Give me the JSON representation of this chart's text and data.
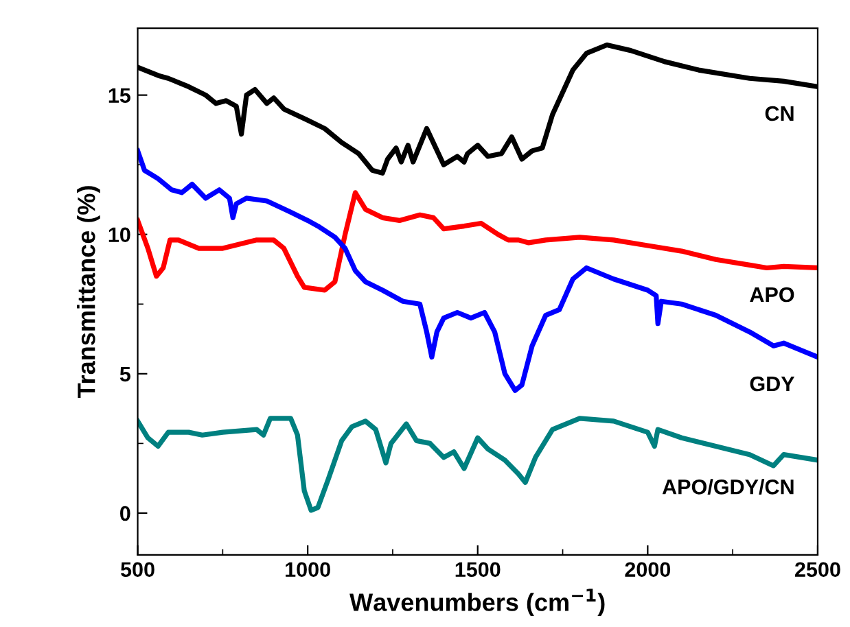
{
  "chart_data": {
    "type": "line",
    "xlabel": "Wavenumbers (cm$^{−1}$)",
    "ylabel": "Transmittance (%)",
    "xlim": [
      500,
      2500
    ],
    "xticks": [
      500,
      1000,
      1500,
      2000,
      2500
    ],
    "ylim": [
      -1.5,
      17.4
    ],
    "yticks": [
      0,
      5,
      10,
      15
    ],
    "grid": false,
    "legend": false,
    "marker": "none",
    "line_style": "solid",
    "series": [
      {
        "name": "CN",
        "color": "#000000",
        "x": [
          500,
          561,
          590,
          650,
          700,
          730,
          760,
          790,
          805,
          820,
          845,
          880,
          900,
          930,
          1000,
          1050,
          1100,
          1150,
          1190,
          1220,
          1235,
          1260,
          1275,
          1295,
          1310,
          1350,
          1400,
          1440,
          1460,
          1470,
          1500,
          1530,
          1570,
          1600,
          1630,
          1660,
          1690,
          1720,
          1780,
          1820,
          1880,
          1950,
          2050,
          2150,
          2300,
          2400,
          2500
        ],
        "values": [
          16.0,
          15.7,
          15.6,
          15.3,
          15.0,
          14.7,
          14.8,
          14.6,
          13.6,
          15.0,
          15.2,
          14.7,
          14.9,
          14.5,
          14.1,
          13.8,
          13.3,
          12.9,
          12.3,
          12.2,
          12.7,
          13.1,
          12.6,
          13.2,
          12.6,
          13.8,
          12.5,
          12.8,
          12.6,
          12.9,
          13.2,
          12.8,
          12.9,
          13.5,
          12.7,
          13.0,
          13.1,
          14.3,
          15.9,
          16.5,
          16.8,
          16.6,
          16.2,
          15.9,
          15.6,
          15.5,
          15.3
        ]
      },
      {
        "name": "APO",
        "color": "#ff0000",
        "x": [
          500,
          530,
          555,
          575,
          595,
          620,
          680,
          750,
          850,
          900,
          930,
          970,
          990,
          1050,
          1080,
          1110,
          1140,
          1170,
          1220,
          1270,
          1330,
          1370,
          1400,
          1460,
          1510,
          1560,
          1590,
          1620,
          1650,
          1700,
          1800,
          1900,
          2000,
          2100,
          2200,
          2300,
          2350,
          2400,
          2500
        ],
        "values": [
          10.5,
          9.5,
          8.5,
          8.8,
          9.8,
          9.8,
          9.5,
          9.5,
          9.8,
          9.8,
          9.5,
          8.5,
          8.1,
          8.0,
          8.3,
          10.0,
          11.5,
          10.9,
          10.6,
          10.5,
          10.7,
          10.6,
          10.2,
          10.3,
          10.4,
          10.0,
          9.8,
          9.8,
          9.7,
          9.8,
          9.9,
          9.8,
          9.6,
          9.4,
          9.1,
          8.9,
          8.8,
          8.85,
          8.8
        ]
      },
      {
        "name": "GDY",
        "color": "#0000ff",
        "x": [
          500,
          520,
          560,
          600,
          630,
          660,
          700,
          740,
          770,
          780,
          790,
          820,
          880,
          950,
          1000,
          1030,
          1080,
          1110,
          1140,
          1170,
          1220,
          1280,
          1330,
          1350,
          1365,
          1380,
          1400,
          1440,
          1480,
          1520,
          1550,
          1580,
          1610,
          1630,
          1660,
          1700,
          1740,
          1780,
          1820,
          1900,
          2000,
          2025,
          2030,
          2040,
          2100,
          2200,
          2300,
          2370,
          2400,
          2500
        ],
        "values": [
          13.0,
          12.3,
          12.0,
          11.6,
          11.5,
          11.8,
          11.3,
          11.6,
          11.3,
          10.6,
          11.1,
          11.3,
          11.2,
          10.8,
          10.5,
          10.3,
          9.9,
          9.5,
          8.7,
          8.3,
          8.0,
          7.6,
          7.5,
          6.5,
          5.6,
          6.5,
          7.0,
          7.2,
          7.0,
          7.2,
          6.5,
          5.0,
          4.4,
          4.6,
          6.0,
          7.1,
          7.3,
          8.4,
          8.8,
          8.4,
          8.0,
          7.8,
          6.8,
          7.6,
          7.5,
          7.1,
          6.5,
          6.0,
          6.1,
          5.6
        ]
      },
      {
        "name": "APO/GDY/CN",
        "color": "#008080",
        "x": [
          500,
          530,
          560,
          590,
          650,
          690,
          750,
          850,
          870,
          890,
          950,
          970,
          990,
          1010,
          1030,
          1060,
          1100,
          1130,
          1170,
          1200,
          1230,
          1245,
          1290,
          1320,
          1360,
          1400,
          1430,
          1460,
          1500,
          1530,
          1580,
          1620,
          1640,
          1670,
          1720,
          1800,
          1900,
          2000,
          2020,
          2030,
          2100,
          2200,
          2300,
          2370,
          2400,
          2500
        ],
        "values": [
          3.3,
          2.7,
          2.4,
          2.9,
          2.9,
          2.8,
          2.9,
          3.0,
          2.8,
          3.4,
          3.4,
          2.8,
          0.8,
          0.1,
          0.2,
          1.2,
          2.6,
          3.1,
          3.3,
          3.0,
          1.8,
          2.5,
          3.2,
          2.6,
          2.5,
          2.0,
          2.2,
          1.6,
          2.7,
          2.3,
          1.9,
          1.4,
          1.1,
          2.0,
          3.0,
          3.4,
          3.3,
          2.9,
          2.4,
          3.0,
          2.7,
          2.4,
          2.1,
          1.7,
          2.1,
          1.9
        ]
      }
    ]
  }
}
